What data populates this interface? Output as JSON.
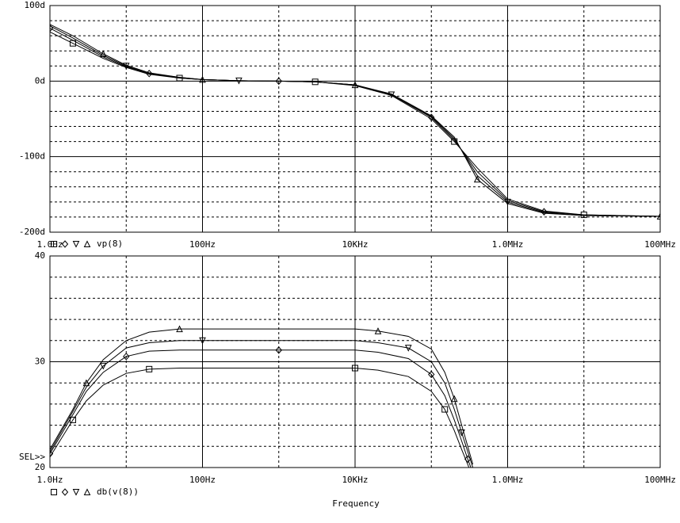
{
  "chart_data": [
    {
      "type": "line",
      "legend": "vp(8)",
      "log_x": true,
      "grid": true,
      "x": [
        1,
        2,
        5,
        10,
        20,
        50,
        100,
        300,
        1000,
        3000,
        10000,
        30000,
        100000,
        200000,
        400000,
        1000000,
        3000000,
        10000000,
        100000000
      ],
      "series": [
        {
          "marker": "square",
          "color": "#000000",
          "values": [
            65,
            50,
            30,
            18,
            9,
            4,
            2,
            0.5,
            0,
            -1,
            -6,
            -19,
            -50,
            -80,
            -115,
            -156,
            -172,
            -177,
            -179
          ]
        },
        {
          "marker": "diamond",
          "color": "#000000",
          "values": [
            70,
            54,
            32,
            19,
            10,
            4,
            2,
            0.5,
            0,
            -1,
            -5,
            -18,
            -48,
            -78,
            -120,
            -158,
            -173,
            -177,
            -179
          ]
        },
        {
          "marker": "triangle-down",
          "color": "#000000",
          "values": [
            73,
            57,
            34,
            20,
            10,
            5,
            2,
            0.5,
            0,
            -1,
            -5,
            -18,
            -47,
            -76,
            -125,
            -160,
            -174,
            -178,
            -179
          ]
        },
        {
          "marker": "triangle-up",
          "color": "#000000",
          "values": [
            75,
            60,
            36,
            21,
            11,
            5,
            2,
            0.5,
            0,
            -1,
            -5,
            -17,
            -46,
            -74,
            -130,
            -162,
            -175,
            -178,
            -179
          ]
        }
      ],
      "xlim": [
        1,
        100000000
      ],
      "xticks": [
        {
          "value": 1,
          "label": "1.0Hz"
        },
        {
          "value": 100,
          "label": "100Hz"
        },
        {
          "value": 10000,
          "label": "10KHz"
        },
        {
          "value": 1000000,
          "label": "1.0MHz"
        },
        {
          "value": 100000000,
          "label": "100MHz"
        }
      ],
      "ylim": [
        -200,
        100
      ],
      "yticks": [
        {
          "value": -200,
          "label": "-200d"
        },
        {
          "value": -100,
          "label": "-100d"
        },
        {
          "value": 0,
          "label": "0d"
        },
        {
          "value": 100,
          "label": "100d"
        }
      ]
    },
    {
      "type": "line",
      "legend": "db(v(8))",
      "xlabel": "Frequency",
      "annotation": "SEL>>",
      "log_x": true,
      "grid": true,
      "x": [
        1,
        2,
        3,
        5,
        10,
        20,
        50,
        100,
        1000,
        10000,
        20000,
        50000,
        100000,
        150000,
        200000,
        250000,
        300000,
        350000
      ],
      "series": [
        {
          "marker": "square",
          "color": "#000000",
          "values": [
            21,
            24.5,
            26.3,
            27.8,
            28.9,
            29.3,
            29.4,
            29.4,
            29.4,
            29.4,
            29.2,
            28.6,
            27.2,
            25.5,
            23.5,
            21.7,
            20.3,
            19
          ]
        },
        {
          "marker": "diamond",
          "color": "#000000",
          "values": [
            21.3,
            25,
            27.2,
            29,
            30.5,
            31,
            31.1,
            31.1,
            31.1,
            31.1,
            30.9,
            30.3,
            28.8,
            26.8,
            24.5,
            22.5,
            20.8,
            19.5
          ]
        },
        {
          "marker": "triangle-down",
          "color": "#000000",
          "values": [
            21.5,
            25.3,
            27.6,
            29.6,
            31.3,
            31.8,
            32,
            32,
            32,
            32,
            31.8,
            31.3,
            30,
            28,
            25.5,
            23.3,
            21.5,
            20
          ]
        },
        {
          "marker": "triangle-up",
          "color": "#000000",
          "values": [
            21.7,
            25.5,
            28,
            30.2,
            32,
            32.8,
            33.1,
            33.1,
            33.1,
            33.1,
            32.9,
            32.4,
            31.2,
            29,
            26.5,
            24,
            22,
            20.3
          ]
        }
      ],
      "xlim": [
        1,
        100000000
      ],
      "xticks": [
        {
          "value": 1,
          "label": "1.0Hz"
        },
        {
          "value": 100,
          "label": "100Hz"
        },
        {
          "value": 10000,
          "label": "10KHz"
        },
        {
          "value": 1000000,
          "label": "1.0MHz"
        },
        {
          "value": 100000000,
          "label": "100MHz"
        }
      ],
      "ylim": [
        20,
        40
      ],
      "yticks": [
        20,
        30,
        40
      ]
    }
  ]
}
